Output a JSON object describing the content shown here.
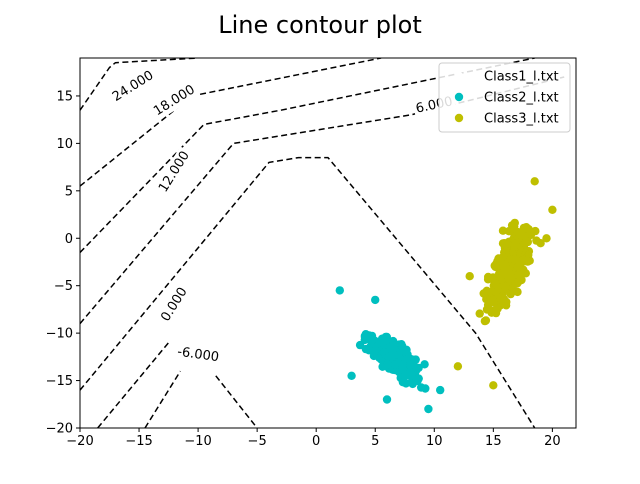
{
  "chart_data": {
    "type": "scatter",
    "title": "Line contour plot",
    "xlabel": "",
    "ylabel": "",
    "xlim": [
      -20,
      22
    ],
    "ylim": [
      -20,
      19
    ],
    "xticks": [
      -20,
      -15,
      -10,
      -5,
      0,
      5,
      10,
      15,
      20
    ],
    "yticks": [
      -20,
      -15,
      -10,
      -5,
      0,
      5,
      10,
      15
    ],
    "grid": false,
    "legend_position": "top-right",
    "legend": [
      {
        "name": "Class1_l.txt",
        "color": "#ffffff"
      },
      {
        "name": "Class2_l.txt",
        "color": "#00bfbf"
      },
      {
        "name": "Class3_l.txt",
        "color": "#bfbf00"
      }
    ],
    "series": [
      {
        "name": "Class1_l.txt",
        "color": "#ffffff",
        "center": [
          0,
          0
        ],
        "count": 0,
        "points": []
      },
      {
        "name": "Class2_l.txt",
        "color": "#00bfbf",
        "center": [
          6.5,
          -12.5
        ],
        "count": 300,
        "points": [
          [
            2.0,
            -5.5
          ],
          [
            5.0,
            -6.5
          ],
          [
            10.5,
            -16.0
          ],
          [
            9.5,
            -18.0
          ],
          [
            6.0,
            -17.0
          ],
          [
            3.0,
            -14.5
          ]
        ]
      },
      {
        "name": "Class3_l.txt",
        "color": "#bfbf00",
        "center": [
          16.5,
          -3.0
        ],
        "count": 300,
        "points": [
          [
            18.5,
            6.0
          ],
          [
            19.5,
            0.0
          ],
          [
            12.0,
            -13.5
          ],
          [
            15.0,
            -15.5
          ],
          [
            13.0,
            -4.0
          ],
          [
            20.0,
            3.0
          ]
        ]
      }
    ],
    "contours": [
      {
        "label": "24.000",
        "label_at": [
          -15.5,
          16.0
        ],
        "label_rotation": -32,
        "points": [
          [
            -20,
            13.5
          ],
          [
            -17.5,
            18.0
          ],
          [
            -17.0,
            18.5
          ],
          [
            -10.0,
            19.0
          ]
        ]
      },
      {
        "label": "18.000",
        "label_at": [
          -12.0,
          14.5
        ],
        "label_rotation": -32,
        "points": [
          [
            -20,
            5.5
          ],
          [
            -10.5,
            15.0
          ],
          [
            5.5,
            19.0
          ]
        ]
      },
      {
        "label": "12.000",
        "label_at": [
          -12.0,
          7.0
        ],
        "label_rotation": -58,
        "points": [
          [
            -20,
            -1.5
          ],
          [
            -9.5,
            12.0
          ],
          [
            -3.0,
            13.5
          ],
          [
            18.5,
            19.0
          ]
        ]
      },
      {
        "label": "6.000",
        "label_at": [
          10.0,
          14.0
        ],
        "label_rotation": -12,
        "points": [
          [
            -20,
            -9.0
          ],
          [
            -7.0,
            10.0
          ],
          [
            8.0,
            13.0
          ],
          [
            21.0,
            17.0
          ]
        ]
      },
      {
        "label": "0.000",
        "label_at": [
          -12.0,
          -7.0
        ],
        "label_rotation": -58,
        "points": [
          [
            -20,
            -16.0
          ],
          [
            -4.0,
            8.0
          ],
          [
            -1.5,
            8.5
          ],
          [
            1.0,
            8.5
          ],
          [
            13.5,
            -10.0
          ],
          [
            18.5,
            -20.0
          ]
        ]
      },
      {
        "label": "-6.000",
        "label_at": [
          -10.0,
          -12.3
        ],
        "label_rotation": 8,
        "points": [
          [
            -14.5,
            -20.0
          ],
          [
            -11.5,
            -14.0
          ]
        ]
      },
      {
        "label": "",
        "label_at": null,
        "label_rotation": 0,
        "points": [
          [
            -8.5,
            -14.5
          ],
          [
            -5.0,
            -20.0
          ]
        ]
      },
      {
        "label": "",
        "label_at": null,
        "label_rotation": 0,
        "points": [
          [
            -18.5,
            -20.0
          ],
          [
            -12.5,
            -11.0
          ]
        ]
      }
    ]
  }
}
